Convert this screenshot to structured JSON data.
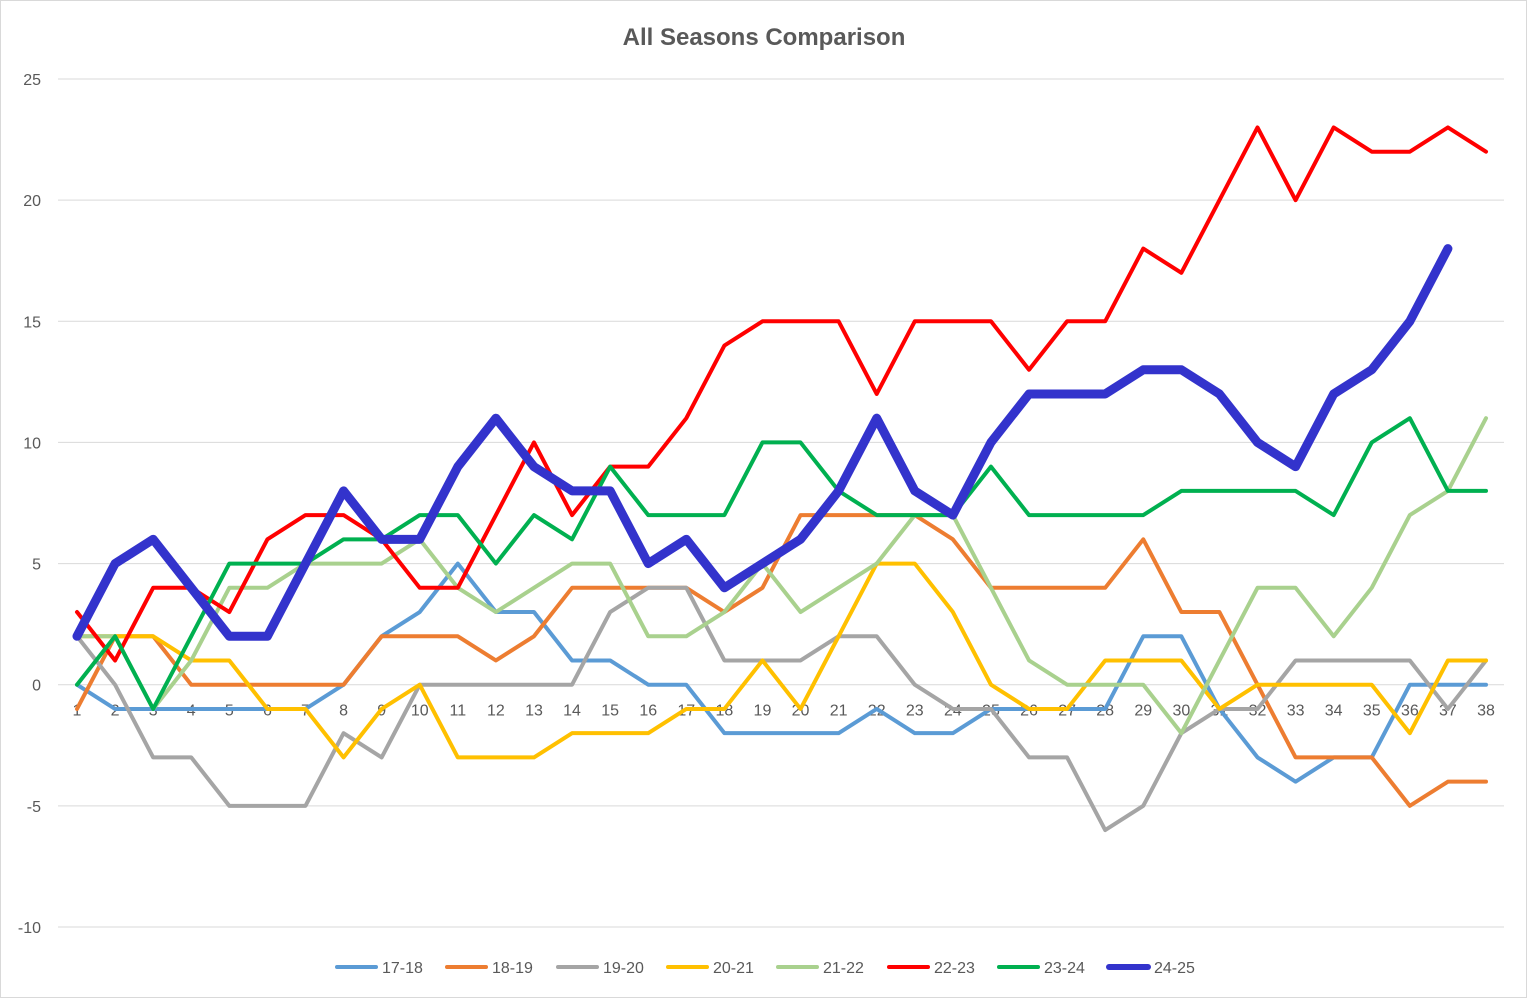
{
  "chart_data": {
    "type": "line",
    "title": "All Seasons Comparison",
    "xlabel": "",
    "ylabel": "",
    "x": [
      1,
      2,
      3,
      4,
      5,
      6,
      7,
      8,
      9,
      10,
      11,
      12,
      13,
      14,
      15,
      16,
      17,
      18,
      19,
      20,
      21,
      22,
      23,
      24,
      25,
      26,
      27,
      28,
      29,
      30,
      31,
      32,
      33,
      34,
      35,
      36,
      37,
      38
    ],
    "ylim": [
      -10,
      25
    ],
    "yticks": [
      -10,
      -5,
      0,
      5,
      10,
      15,
      20,
      25
    ],
    "grid": "horizontal",
    "legend": "bottom",
    "series": [
      {
        "name": "17-18",
        "color": "#5B9BD5",
        "width": 4,
        "values": [
          0,
          -1,
          -1,
          -1,
          -1,
          -1,
          -1,
          0,
          2,
          3,
          5,
          3,
          3,
          1,
          1,
          0,
          0,
          -2,
          -2,
          -2,
          -2,
          -1,
          -2,
          -2,
          -1,
          -1,
          -1,
          -1,
          2,
          2,
          -1,
          -3,
          -4,
          -3,
          -3,
          0,
          0,
          0
        ]
      },
      {
        "name": "18-19",
        "color": "#ED7D31",
        "width": 4,
        "values": [
          -1,
          2,
          2,
          0,
          0,
          0,
          0,
          0,
          2,
          2,
          2,
          1,
          2,
          4,
          4,
          4,
          4,
          3,
          4,
          7,
          7,
          7,
          7,
          6,
          4,
          4,
          4,
          4,
          6,
          3,
          3,
          0,
          -3,
          -3,
          -3,
          -5,
          -4,
          -4
        ]
      },
      {
        "name": "19-20",
        "color": "#A5A5A5",
        "width": 4,
        "values": [
          2,
          0,
          -3,
          -3,
          -5,
          -5,
          -5,
          -2,
          -3,
          0,
          0,
          0,
          0,
          0,
          3,
          4,
          4,
          1,
          1,
          1,
          2,
          2,
          0,
          -1,
          -1,
          -3,
          -3,
          -6,
          -5,
          -2,
          -1,
          -1,
          1,
          1,
          1,
          1,
          -1,
          1
        ]
      },
      {
        "name": "20-21",
        "color": "#FFC000",
        "width": 4,
        "values": [
          2,
          2,
          2,
          1,
          1,
          -1,
          -1,
          -3,
          -1,
          0,
          -3,
          -3,
          -3,
          -2,
          -2,
          -2,
          -1,
          -1,
          1,
          -1,
          2,
          5,
          5,
          3,
          0,
          -1,
          -1,
          1,
          1,
          1,
          -1,
          0,
          0,
          0,
          0,
          -2,
          1,
          1
        ]
      },
      {
        "name": "21-22",
        "color": "#A9D18E",
        "width": 4,
        "values": [
          2,
          2,
          -1,
          1,
          4,
          4,
          5,
          5,
          5,
          6,
          4,
          3,
          4,
          5,
          5,
          2,
          2,
          3,
          5,
          3,
          4,
          5,
          7,
          7,
          4,
          1,
          0,
          0,
          0,
          -2,
          1,
          4,
          4,
          2,
          4,
          7,
          8,
          11
        ]
      },
      {
        "name": "22-23",
        "color": "#FF0000",
        "width": 4,
        "values": [
          3,
          1,
          4,
          4,
          3,
          6,
          7,
          7,
          6,
          4,
          4,
          7,
          10,
          7,
          9,
          9,
          11,
          14,
          15,
          15,
          15,
          12,
          15,
          15,
          15,
          13,
          15,
          15,
          18,
          17,
          20,
          23,
          20,
          23,
          22,
          22,
          23,
          22
        ]
      },
      {
        "name": "23-24",
        "color": "#00B050",
        "width": 4,
        "values": [
          0,
          2,
          -1,
          2,
          5,
          5,
          5,
          6,
          6,
          7,
          7,
          5,
          7,
          6,
          9,
          7,
          7,
          7,
          10,
          10,
          8,
          7,
          7,
          7,
          9,
          7,
          7,
          7,
          7,
          8,
          8,
          8,
          8,
          7,
          10,
          11,
          8,
          8
        ]
      },
      {
        "name": "24-25",
        "color": "#3333CC",
        "width": 9,
        "values": [
          2,
          5,
          6,
          4,
          2,
          2,
          5,
          8,
          6,
          6,
          9,
          11,
          9,
          8,
          8,
          5,
          6,
          4,
          5,
          6,
          8,
          11,
          8,
          7,
          10,
          12,
          12,
          12,
          13,
          13,
          12,
          10,
          9,
          12,
          13,
          15,
          18,
          null
        ]
      }
    ]
  }
}
